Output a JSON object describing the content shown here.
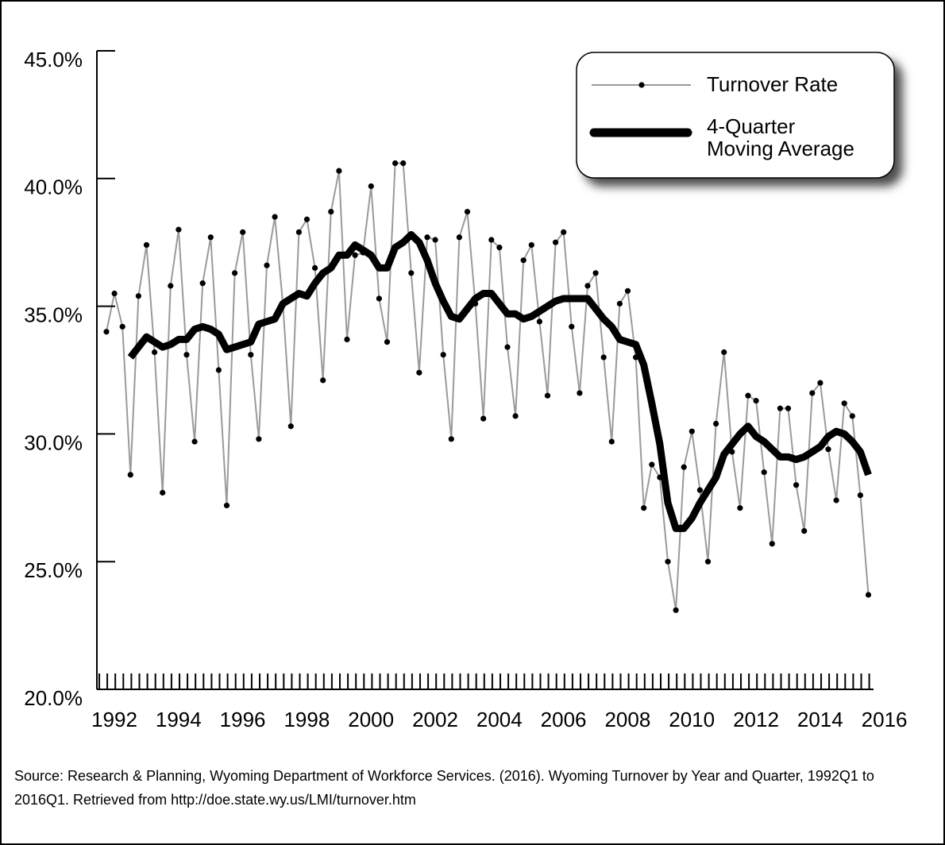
{
  "chart_data": {
    "type": "line",
    "x": [
      1992,
      1992.25,
      1992.5,
      1992.75,
      1993,
      1993.25,
      1993.5,
      1993.75,
      1994,
      1994.25,
      1994.5,
      1994.75,
      1995,
      1995.25,
      1995.5,
      1995.75,
      1996,
      1996.25,
      1996.5,
      1996.75,
      1997,
      1997.25,
      1997.5,
      1997.75,
      1998,
      1998.25,
      1998.5,
      1998.75,
      1999,
      1999.25,
      1999.5,
      1999.75,
      2000,
      2000.25,
      2000.5,
      2000.75,
      2001,
      2001.25,
      2001.5,
      2001.75,
      2002,
      2002.25,
      2002.5,
      2002.75,
      2003,
      2003.25,
      2003.5,
      2003.75,
      2004,
      2004.25,
      2004.5,
      2004.75,
      2005,
      2005.25,
      2005.5,
      2005.75,
      2006,
      2006.25,
      2006.5,
      2006.75,
      2007,
      2007.25,
      2007.5,
      2007.75,
      2008,
      2008.25,
      2008.5,
      2008.75,
      2009,
      2009.25,
      2009.5,
      2009.75,
      2010,
      2010.25,
      2010.5,
      2010.75,
      2011,
      2011.25,
      2011.5,
      2011.75,
      2012,
      2012.25,
      2012.5,
      2012.75,
      2013,
      2013.25,
      2013.5,
      2013.75,
      2014,
      2014.25,
      2014.5,
      2014.75,
      2015,
      2015.25,
      2015.5,
      2015.75
    ],
    "series": [
      {
        "name": "Turnover Rate",
        "color": "#9a9a9a",
        "values": [
          34.0,
          35.5,
          34.2,
          28.4,
          35.4,
          37.4,
          33.2,
          27.7,
          35.8,
          38.0,
          33.1,
          29.7,
          35.9,
          37.7,
          32.5,
          27.2,
          36.3,
          37.9,
          33.1,
          29.8,
          36.6,
          38.5,
          35.1,
          30.3,
          37.9,
          38.4,
          36.5,
          32.1,
          38.7,
          40.3,
          33.7,
          37.0,
          37.1,
          39.7,
          35.3,
          33.6,
          40.6,
          40.6,
          36.3,
          32.4,
          37.7,
          37.6,
          33.1,
          29.8,
          37.7,
          38.7,
          35.1,
          30.6,
          37.6,
          37.3,
          33.4,
          30.7,
          36.8,
          37.4,
          34.4,
          31.5,
          37.5,
          37.9,
          34.2,
          31.6,
          35.8,
          36.3,
          33.0,
          29.7,
          35.1,
          35.6,
          33.0,
          27.1,
          28.8,
          28.3,
          25.0,
          23.1,
          28.7,
          30.1,
          27.8,
          25.0,
          30.4,
          33.2,
          29.3,
          27.1,
          31.5,
          31.3,
          28.5,
          25.7,
          31.0,
          31.0,
          28.0,
          26.2,
          31.6,
          32.0,
          29.4,
          27.4,
          31.2,
          30.7,
          27.6,
          23.7
        ]
      },
      {
        "name": "4-Quarter Moving Average",
        "color": "#000000",
        "values": [
          null,
          null,
          null,
          33.0,
          33.4,
          33.8,
          33.6,
          33.4,
          33.5,
          33.7,
          33.7,
          34.1,
          34.2,
          34.1,
          33.9,
          33.3,
          33.4,
          33.5,
          33.6,
          34.3,
          34.4,
          34.5,
          35.1,
          35.3,
          35.5,
          35.4,
          35.9,
          36.3,
          36.5,
          37.0,
          37.0,
          37.4,
          37.2,
          37.0,
          36.5,
          36.5,
          37.3,
          37.5,
          37.8,
          37.5,
          36.8,
          35.9,
          35.2,
          34.6,
          34.5,
          34.9,
          35.3,
          35.5,
          35.5,
          35.1,
          34.7,
          34.7,
          34.5,
          34.6,
          34.8,
          35.0,
          35.2,
          35.3,
          35.3,
          35.3,
          35.3,
          34.9,
          34.5,
          34.2,
          33.7,
          33.6,
          33.5,
          32.7,
          31.2,
          29.6,
          27.3,
          26.3,
          26.3,
          26.7,
          27.3,
          27.8,
          28.3,
          29.2,
          29.6,
          30.0,
          30.3,
          29.9,
          29.7,
          29.4,
          29.1,
          29.1,
          29.0,
          29.1,
          29.3,
          29.5,
          29.9,
          30.1,
          30.0,
          29.7,
          29.3,
          28.4
        ]
      }
    ],
    "xlim": [
      1991.7,
      2016.2
    ],
    "xticks": [
      1992,
      1994,
      1996,
      1998,
      2000,
      2002,
      2004,
      2006,
      2008,
      2010,
      2012,
      2014,
      2016
    ],
    "ylim": [
      20,
      45
    ],
    "yticks": [
      {
        "value": 20,
        "label": "20.0%"
      },
      {
        "value": 25,
        "label": "25.0%"
      },
      {
        "value": 30,
        "label": "30.0%"
      },
      {
        "value": 35,
        "label": "35.0%"
      },
      {
        "value": 40,
        "label": "40.0%"
      },
      {
        "value": 45,
        "label": "45.0%"
      }
    ],
    "legend": "top-right",
    "source": "Source: Research & Planning, Wyoming Department of Workforce Services. (2016). Wyoming Turnover by Year  and Quarter, 1992Q1 to 2016Q1. Retrieved from http://doe.state.wy.us/LMI/turnover.htm"
  }
}
